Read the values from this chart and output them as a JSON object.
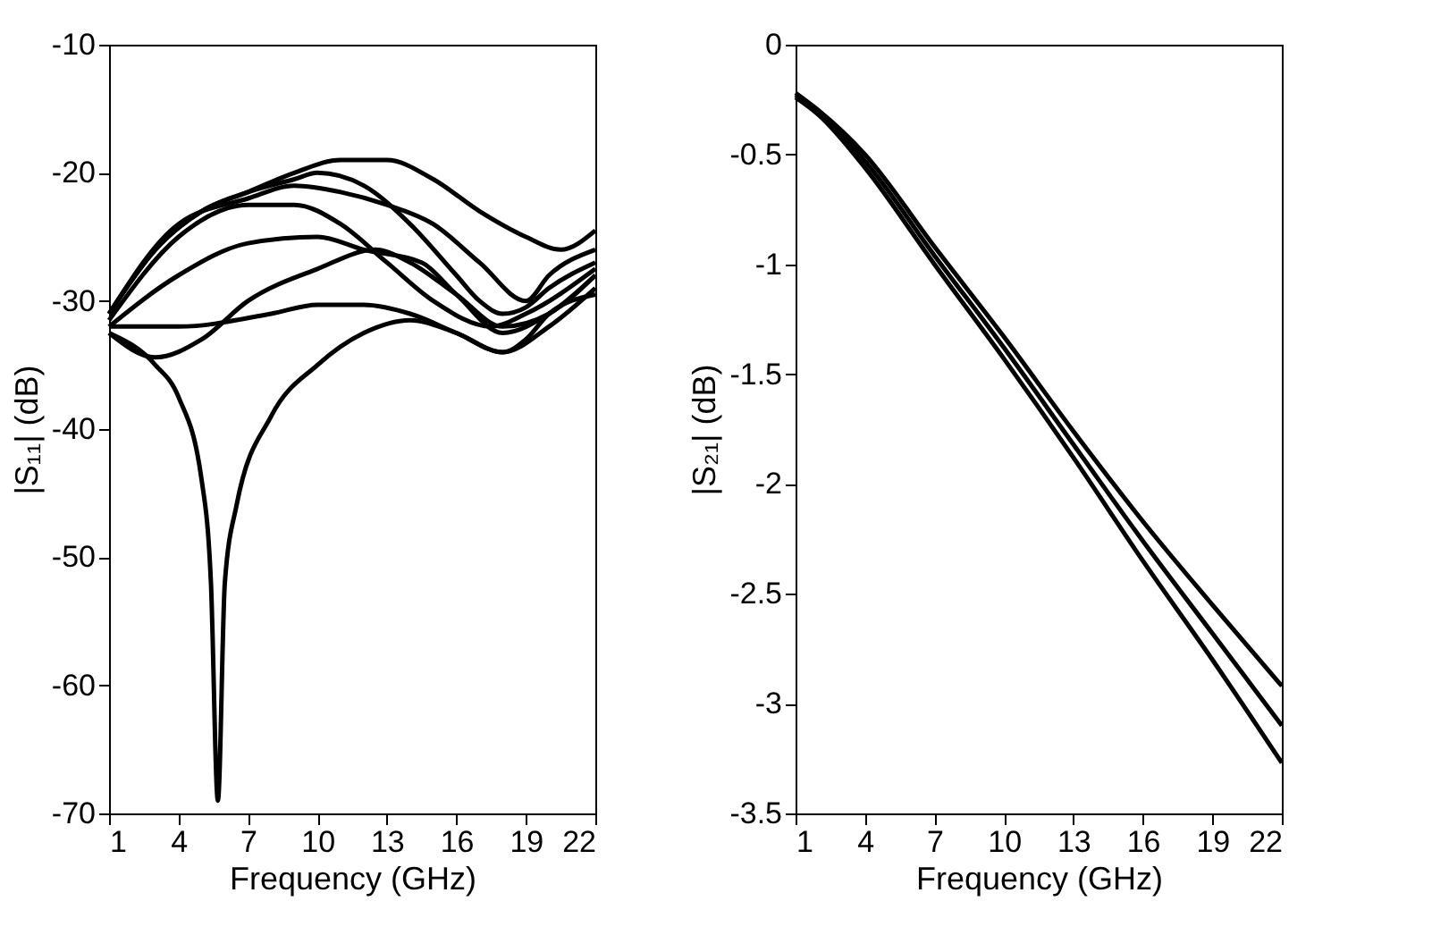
{
  "chart_data": [
    {
      "type": "line",
      "xlabel": "Frequency (GHz)",
      "ylabel": "|S₁₁| (dB)",
      "xlim": [
        1,
        22
      ],
      "ylim": [
        -70,
        -10
      ],
      "xticks": [
        1,
        4,
        7,
        10,
        13,
        16,
        19,
        22
      ],
      "yticks": [
        -70,
        -60,
        -50,
        -40,
        -30,
        -20,
        -10
      ],
      "grid": false,
      "legend": false,
      "marker": "none",
      "line_style": "solid",
      "series": [
        {
          "color": "#000000",
          "x": [
            1,
            3,
            5,
            7,
            9,
            11,
            13,
            15,
            17,
            19,
            20.5,
            22
          ],
          "values": [
            -31,
            -26,
            -23,
            -21.5,
            -20,
            -19,
            -19,
            -20.5,
            -23,
            -25,
            -26,
            -24.5
          ]
        },
        {
          "color": "#000000",
          "x": [
            1,
            3,
            5,
            7,
            9,
            10,
            12,
            14,
            16,
            17,
            18,
            19,
            20,
            22
          ],
          "values": [
            -31,
            -26,
            -23,
            -21.5,
            -20.5,
            -20,
            -21,
            -24,
            -28,
            -30,
            -31,
            -30.5,
            -29,
            -27
          ]
        },
        {
          "color": "#000000",
          "x": [
            1,
            4,
            7,
            9,
            11,
            13,
            15,
            17,
            19,
            20,
            22
          ],
          "values": [
            -31,
            -24,
            -22,
            -21,
            -21.5,
            -22.5,
            -24,
            -27,
            -30,
            -28,
            -26
          ]
        },
        {
          "color": "#000000",
          "x": [
            1,
            4,
            7,
            9,
            11,
            13,
            15,
            17.5,
            19,
            22
          ],
          "values": [
            -31.5,
            -25,
            -22.5,
            -22.5,
            -24,
            -27,
            -30,
            -32,
            -31,
            -27.5
          ]
        },
        {
          "color": "#000000",
          "x": [
            1,
            4,
            7,
            10,
            12,
            14.5,
            16,
            18,
            20,
            22
          ],
          "values": [
            -32,
            -28,
            -25.5,
            -25,
            -26,
            -27,
            -29.5,
            -32.5,
            -31,
            -28
          ]
        },
        {
          "color": "#000000",
          "x": [
            1,
            3,
            5,
            7,
            10,
            12.5,
            14,
            16,
            18,
            20,
            22
          ],
          "values": [
            -32.5,
            -34.4,
            -33,
            -30,
            -27.5,
            -26,
            -27,
            -29.5,
            -32,
            -31,
            -28
          ]
        },
        {
          "color": "#000000",
          "x": [
            1,
            4,
            8,
            10,
            12,
            14,
            16,
            18,
            20,
            22
          ],
          "values": [
            -32,
            -32,
            -31,
            -30.3,
            -30.3,
            -31,
            -32.5,
            -34,
            -32,
            -29
          ]
        },
        {
          "color": "#000000",
          "x": [
            1,
            3,
            4,
            5,
            5.4,
            5.7,
            6,
            6.5,
            8,
            10,
            12,
            14,
            16,
            18,
            19,
            20,
            22
          ],
          "values": [
            -32.5,
            -35,
            -37.5,
            -44,
            -52,
            -69,
            -52,
            -46,
            -39,
            -35,
            -32.5,
            -31.5,
            -32.5,
            -34,
            -33,
            -31,
            -29.5
          ]
        }
      ]
    },
    {
      "type": "line",
      "xlabel": "Frequency (GHz)",
      "ylabel": "|S₂₁| (dB)",
      "xlim": [
        1,
        22
      ],
      "ylim": [
        -3.5,
        0
      ],
      "xticks": [
        1,
        4,
        7,
        10,
        13,
        16,
        19,
        22
      ],
      "yticks": [
        -3.5,
        -3,
        -2.5,
        -2,
        -1.5,
        -1,
        -0.5,
        0
      ],
      "grid": false,
      "legend": false,
      "marker": "none",
      "line_style": "solid",
      "series": [
        {
          "color": "#000000",
          "x": [
            1,
            2,
            4,
            7,
            10,
            13,
            16,
            19,
            22
          ],
          "values": [
            -0.22,
            -0.3,
            -0.5,
            -0.92,
            -1.33,
            -1.76,
            -2.17,
            -2.55,
            -2.92
          ]
        },
        {
          "color": "#000000",
          "x": [
            1,
            2,
            4,
            7,
            10,
            13,
            16,
            19,
            22
          ],
          "values": [
            -0.23,
            -0.31,
            -0.53,
            -0.96,
            -1.38,
            -1.82,
            -2.26,
            -2.68,
            -3.1
          ]
        },
        {
          "color": "#000000",
          "x": [
            1,
            2,
            4,
            7,
            10,
            13,
            16,
            19,
            22
          ],
          "values": [
            -0.24,
            -0.32,
            -0.56,
            -1.0,
            -1.43,
            -1.88,
            -2.35,
            -2.8,
            -3.27
          ]
        }
      ]
    }
  ]
}
